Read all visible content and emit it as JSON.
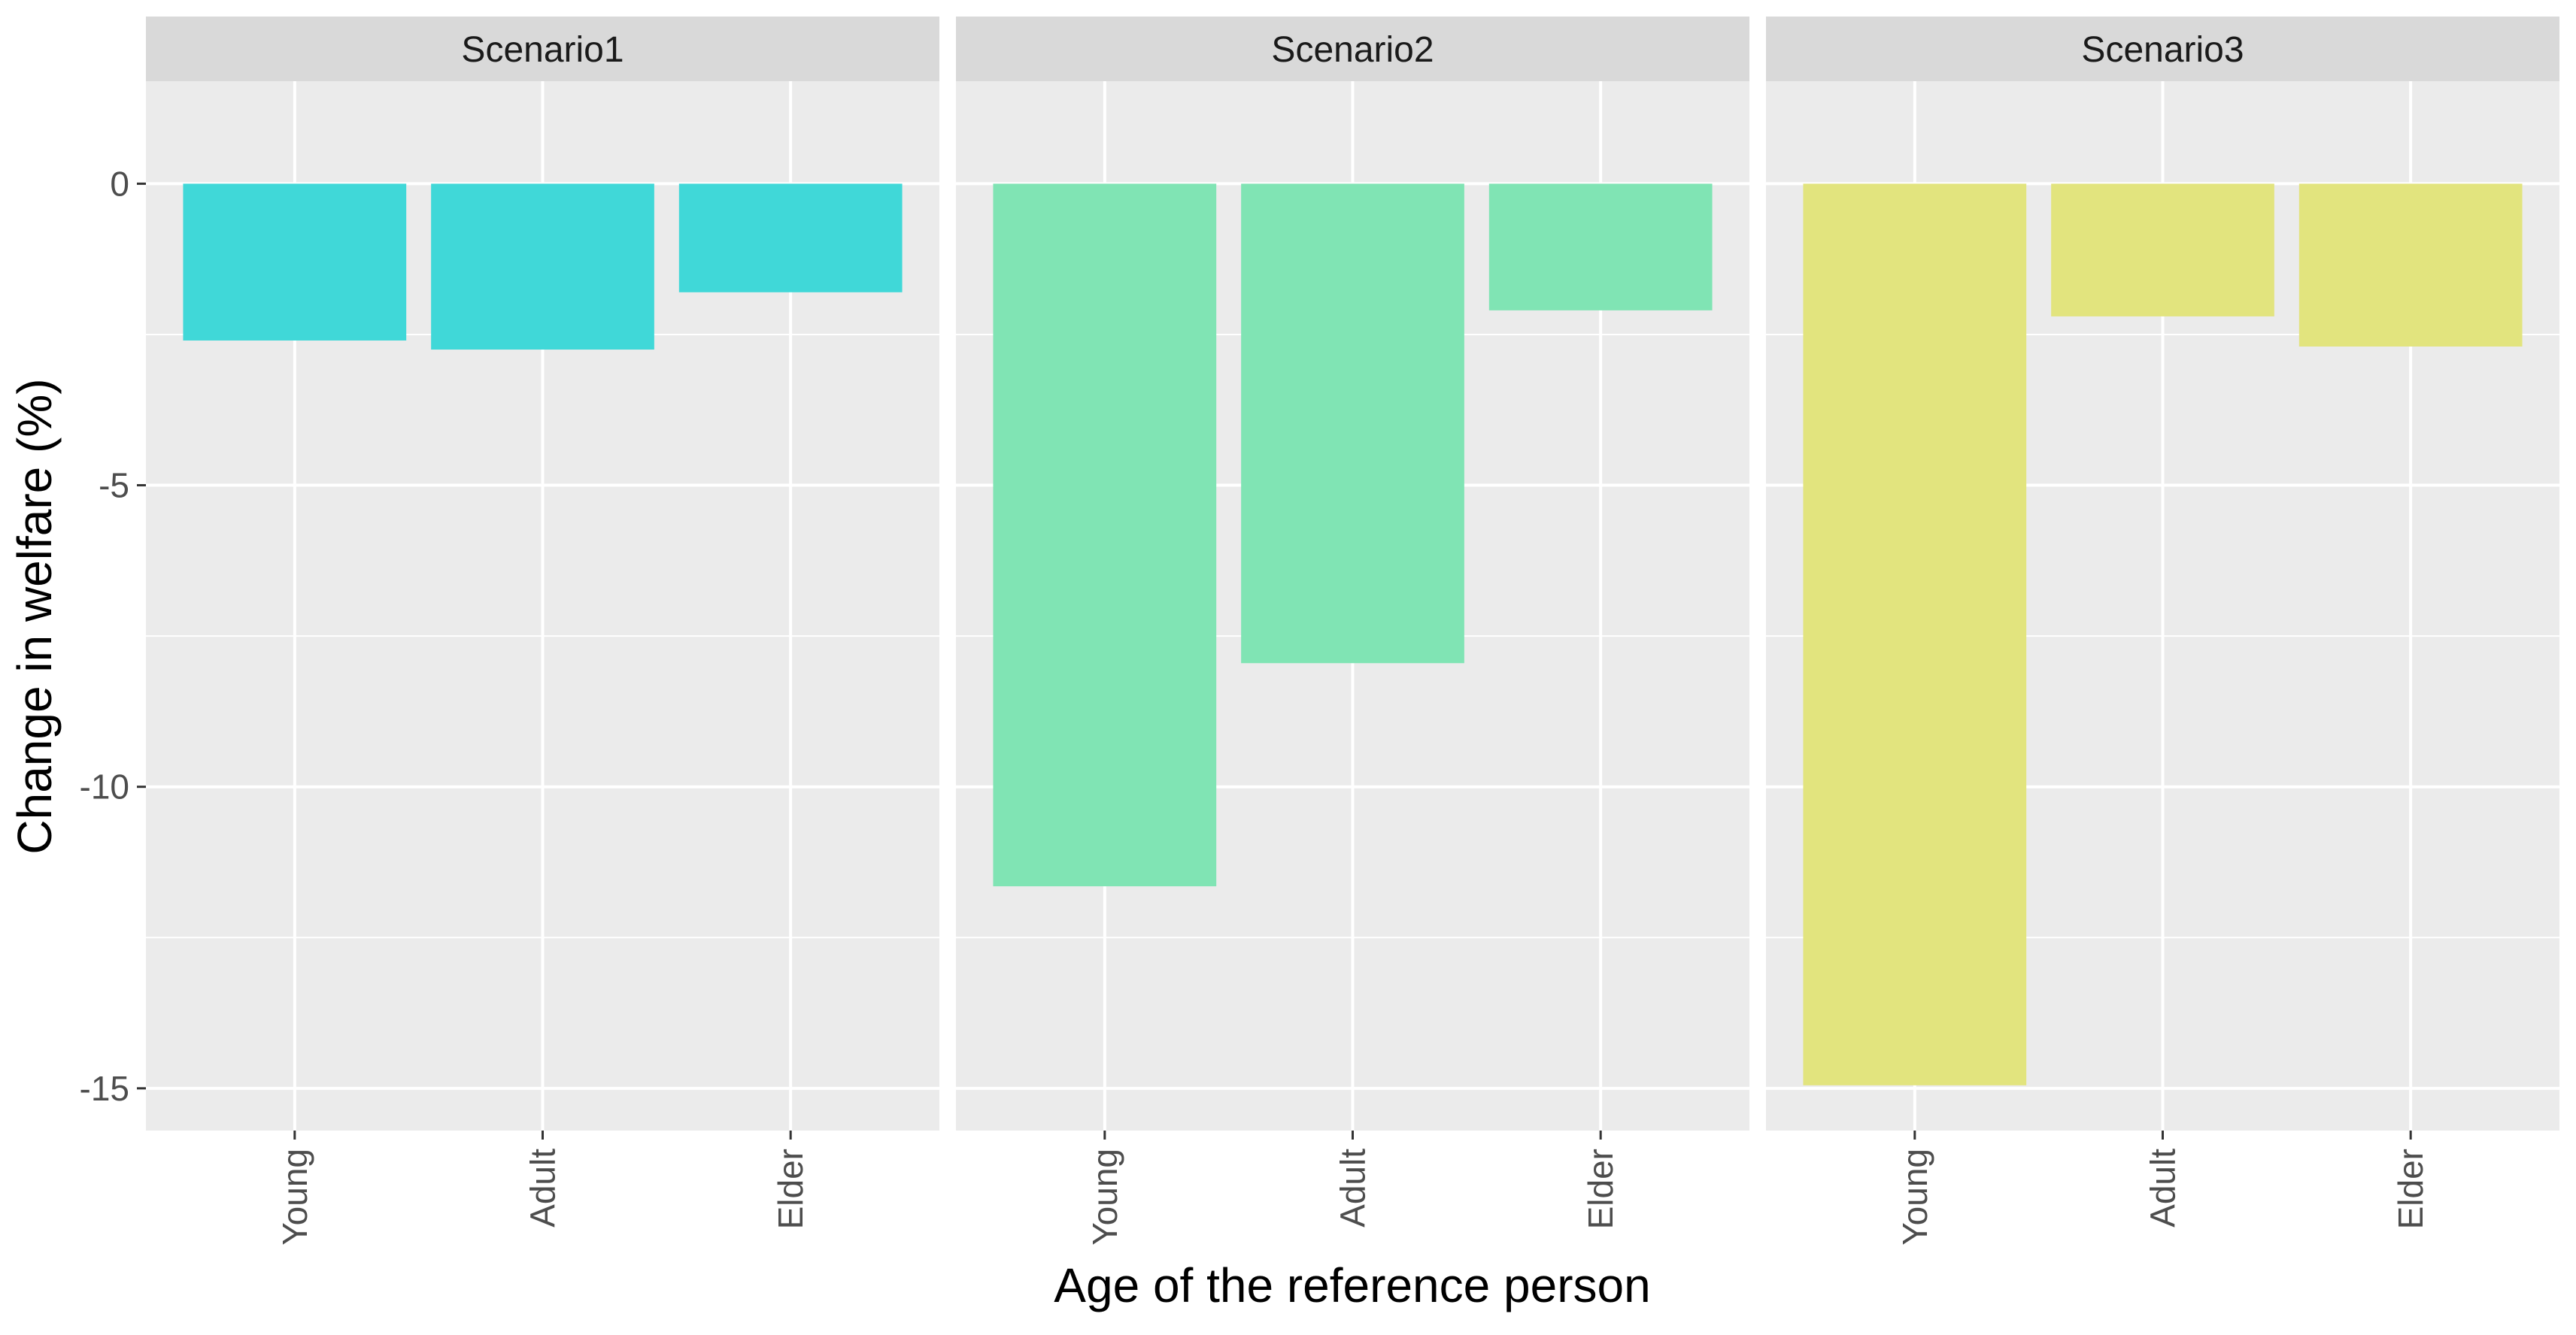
{
  "chart_data": {
    "type": "bar",
    "xlabel": "Age of the reference person",
    "ylabel": "Change in welfare (%)",
    "ylim": [
      -15.7,
      1.7
    ],
    "y_ticks": [
      0,
      -5,
      -10,
      -15
    ],
    "y_tick_labels": [
      "0",
      "-5",
      "-10",
      "-15"
    ],
    "grid": true,
    "categories": [
      "Young",
      "Adult",
      "Elder"
    ],
    "panels": [
      {
        "name": "Scenario1",
        "color": "#40D8D8",
        "values": [
          -2.6,
          -2.75,
          -1.8
        ]
      },
      {
        "name": "Scenario2",
        "color": "#80E4B4",
        "values": [
          -11.65,
          -7.95,
          -2.1
        ]
      },
      {
        "name": "Scenario3",
        "color": "#E2E47E",
        "values": [
          -14.95,
          -2.2,
          -2.7
        ]
      }
    ]
  }
}
